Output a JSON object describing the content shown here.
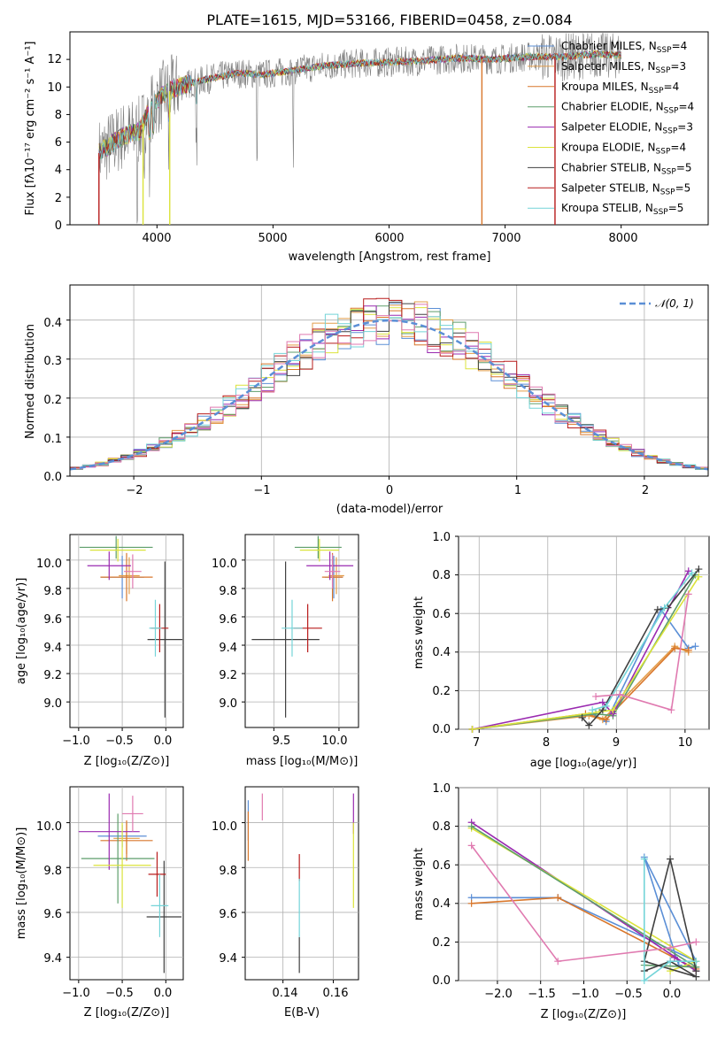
{
  "title": "PLATE=1615, MJD=53166, FIBERID=0458, z=0.084",
  "colors": {
    "chabrier_miles": "#5b8fd6",
    "salpeter_miles": "#e39d4a",
    "kroupa_miles": "#d9772b",
    "chabrier_elodie": "#5e9e6b",
    "salpeter_elodie": "#9a2ab0",
    "kroupa_elodie": "#dbe33b",
    "chabrier_stelib": "#404040",
    "salpeter_stelib": "#b81c1c",
    "kroupa_stelib": "#74d4d8",
    "data": "#808080",
    "pink": "#e07ab0",
    "normal": "#5b8fd6"
  },
  "panels": {
    "spectrum": {
      "xlabel": "wavelength [Angstrom, rest frame]",
      "ylabel": "Flux [fλ10⁻¹⁷ erg cm⁻² s⁻¹ A⁻¹]",
      "xticks": [
        "4000",
        "5000",
        "6000",
        "7000",
        "8000"
      ],
      "yticks": [
        "0",
        "2",
        "4",
        "6",
        "8",
        "10",
        "12"
      ],
      "legend": [
        {
          "label": "Chabrier MILES, N",
          "sub": "SSP",
          "tail": "=4",
          "color": "chabrier_miles"
        },
        {
          "label": "Salpeter MILES, N",
          "sub": "SSP",
          "tail": "=3",
          "color": "salpeter_miles"
        },
        {
          "label": "Kroupa MILES, N",
          "sub": "SSP",
          "tail": "=4",
          "color": "kroupa_miles"
        },
        {
          "label": "Chabrier ELODIE, N",
          "sub": "SSP",
          "tail": "=4",
          "color": "chabrier_elodie"
        },
        {
          "label": "Salpeter ELODIE, N",
          "sub": "SSP",
          "tail": "=3",
          "color": "salpeter_elodie"
        },
        {
          "label": "Kroupa ELODIE, N",
          "sub": "SSP",
          "tail": "=4",
          "color": "kroupa_elodie"
        },
        {
          "label": "Chabrier STELIB, N",
          "sub": "SSP",
          "tail": "=5",
          "color": "chabrier_stelib"
        },
        {
          "label": "Salpeter STELIB, N",
          "sub": "SSP",
          "tail": "=5",
          "color": "salpeter_stelib"
        },
        {
          "label": "Kroupa STELIB, N",
          "sub": "SSP",
          "tail": "=5",
          "color": "kroupa_stelib"
        }
      ]
    },
    "hist": {
      "xlabel": "(data-model)/error",
      "ylabel": "Normed distribution",
      "xticks": [
        "−2",
        "−1",
        "0",
        "1",
        "2"
      ],
      "yticks": [
        "0.0",
        "0.1",
        "0.2",
        "0.3",
        "0.4"
      ],
      "legend": "𝒩(0, 1)"
    },
    "age_z": {
      "xlabel": "Z [log₁₀(Z/Z⊙)]",
      "ylabel": "age  [log₁₀(age/yr)]",
      "xticks": [
        "−1.0",
        "−0.5",
        "0.0"
      ],
      "yticks": [
        "9.0",
        "9.2",
        "9.4",
        "9.6",
        "9.8",
        "10.0"
      ]
    },
    "age_mass": {
      "xlabel": "mass [log₁₀(M/M⊙)]",
      "xticks": [
        "9.5",
        "10.0"
      ],
      "yticks": [
        "9.0",
        "9.2",
        "9.4",
        "9.6",
        "9.8",
        "10.0"
      ]
    },
    "mw_age": {
      "xlabel": "age  [log₁₀(age/yr)]",
      "ylabel": "mass weight",
      "xticks": [
        "7",
        "8",
        "9",
        "10"
      ],
      "yticks": [
        "0.0",
        "0.2",
        "0.4",
        "0.6",
        "0.8",
        "1.0"
      ]
    },
    "mass_z": {
      "xlabel": "Z [log₁₀(Z/Z⊙)]",
      "ylabel": "mass [log₁₀(M/M⊙)]",
      "xticks": [
        "−1.0",
        "−0.5",
        "0.0"
      ],
      "yticks": [
        "9.4",
        "9.6",
        "9.8",
        "10.0"
      ]
    },
    "mass_ebv": {
      "xlabel": "E(B-V)",
      "xticks": [
        "0.14",
        "0.16"
      ],
      "yticks": [
        "9.4",
        "9.6",
        "9.8",
        "10.0"
      ]
    },
    "mw_z": {
      "xlabel": "Z [log₁₀(Z/Z⊙)]",
      "ylabel": "mass weight",
      "xticks": [
        "−2.0",
        "−1.5",
        "−1.0",
        "−0.5",
        "0.0"
      ],
      "yticks": [
        "0.0",
        "0.2",
        "0.4",
        "0.6",
        "0.8",
        "1.0"
      ]
    }
  },
  "chart_data": [
    {
      "type": "line",
      "id": "spectrum",
      "xlim": [
        3250,
        8750
      ],
      "ylim": [
        0,
        14
      ],
      "xlabel": "wavelength [Angstrom, rest frame]",
      "envelope": [
        [
          3500,
          5.2
        ],
        [
          3700,
          6.4
        ],
        [
          3850,
          6.8
        ],
        [
          3950,
          8.6
        ],
        [
          4050,
          9.4
        ],
        [
          4150,
          9.9
        ],
        [
          4300,
          10.3
        ],
        [
          4500,
          10.7
        ],
        [
          4700,
          11.0
        ],
        [
          4900,
          10.9
        ],
        [
          5100,
          11.1
        ],
        [
          5400,
          11.5
        ],
        [
          5700,
          11.7
        ],
        [
          6000,
          11.8
        ],
        [
          6300,
          11.9
        ],
        [
          6600,
          12.1
        ],
        [
          6900,
          12.0
        ],
        [
          7200,
          12.2
        ],
        [
          7500,
          12.2
        ],
        [
          7800,
          12.4
        ],
        [
          8000,
          12.3
        ]
      ]
    },
    {
      "type": "bar",
      "id": "hist",
      "xlim": [
        -2.5,
        2.5
      ],
      "ylim": [
        0,
        0.49
      ],
      "normal": {
        "mean": 0,
        "sigma": 1,
        "label": "𝒩(0, 1)"
      }
    },
    {
      "type": "scatter",
      "id": "age_z",
      "xlim": [
        -1.1,
        0.2
      ],
      "ylim": [
        8.82,
        10.18
      ],
      "points": [
        {
          "series": "chabrier_miles",
          "x": -0.5,
          "y": 9.88,
          "xerr": 0.25,
          "yerr": 0.15
        },
        {
          "series": "salpeter_miles",
          "x": -0.42,
          "y": 9.89,
          "xerr": 0.12,
          "yerr": 0.13
        },
        {
          "series": "kroupa_miles",
          "x": -0.45,
          "y": 9.88,
          "xerr": 0.3,
          "yerr": 0.17
        },
        {
          "series": "chabrier_elodie",
          "x": -0.57,
          "y": 10.09,
          "xerr": 0.42,
          "yerr": 0.08
        },
        {
          "series": "salpeter_elodie",
          "x": -0.65,
          "y": 9.96,
          "xerr": 0.25,
          "yerr": 0.1
        },
        {
          "series": "kroupa_elodie",
          "x": -0.55,
          "y": 10.07,
          "xerr": 0.32,
          "yerr": 0.08
        },
        {
          "series": "chabrier_stelib",
          "x": -0.01,
          "y": 9.44,
          "xerr": 0.2,
          "yerr": 0.55
        },
        {
          "series": "salpeter_stelib",
          "x": -0.07,
          "y": 9.52,
          "xerr": 0.1,
          "yerr": 0.17
        },
        {
          "series": "kroupa_stelib",
          "x": -0.12,
          "y": 9.52,
          "xerr": 0.07,
          "yerr": 0.2
        },
        {
          "series": "pink",
          "x": -0.38,
          "y": 9.92,
          "xerr": 0.1,
          "yerr": 0.12
        }
      ]
    },
    {
      "type": "scatter",
      "id": "age_mass",
      "xlim": [
        9.28,
        10.15
      ],
      "ylim": [
        8.82,
        10.18
      ],
      "points": [
        {
          "series": "chabrier_miles",
          "x": 9.96,
          "y": 9.88,
          "xerr": 0.07,
          "yerr": 0.15
        },
        {
          "series": "salpeter_miles",
          "x": 9.98,
          "y": 9.89,
          "xerr": 0.06,
          "yerr": 0.13
        },
        {
          "series": "kroupa_miles",
          "x": 9.95,
          "y": 9.88,
          "xerr": 0.08,
          "yerr": 0.17
        },
        {
          "series": "chabrier_elodie",
          "x": 9.84,
          "y": 10.09,
          "xerr": 0.18,
          "yerr": 0.08
        },
        {
          "series": "salpeter_elodie",
          "x": 9.93,
          "y": 9.96,
          "xerr": 0.18,
          "yerr": 0.1
        },
        {
          "series": "kroupa_elodie",
          "x": 9.85,
          "y": 10.07,
          "xerr": 0.15,
          "yerr": 0.08
        },
        {
          "series": "chabrier_stelib",
          "x": 9.59,
          "y": 9.44,
          "xerr": 0.26,
          "yerr": 0.55
        },
        {
          "series": "salpeter_stelib",
          "x": 9.76,
          "y": 9.52,
          "xerr": 0.11,
          "yerr": 0.17
        },
        {
          "series": "kroupa_stelib",
          "x": 9.64,
          "y": 9.52,
          "xerr": 0.08,
          "yerr": 0.2
        },
        {
          "series": "pink",
          "x": 9.95,
          "y": 9.92,
          "xerr": 0.06,
          "yerr": 0.12
        }
      ]
    },
    {
      "type": "line",
      "id": "mw_age",
      "xlim": [
        6.7,
        10.35
      ],
      "ylim": [
        0,
        1.0
      ],
      "series": [
        {
          "name": "chabrier_miles",
          "x": [
            6.9,
            8.65,
            8.85,
            9.65,
            10.05,
            10.15
          ],
          "y": [
            0.0,
            0.08,
            0.04,
            0.62,
            0.42,
            0.43
          ]
        },
        {
          "name": "salpeter_miles",
          "x": [
            6.9,
            8.6,
            8.8,
            9.85,
            10.05
          ],
          "y": [
            0.0,
            0.07,
            0.05,
            0.43,
            0.4
          ]
        },
        {
          "name": "kroupa_miles",
          "x": [
            6.9,
            8.55,
            8.85,
            9.85,
            10.05
          ],
          "y": [
            0.0,
            0.08,
            0.05,
            0.42,
            0.41
          ]
        },
        {
          "name": "chabrier_elodie",
          "x": [
            6.9,
            8.7,
            8.95,
            10.15
          ],
          "y": [
            0.0,
            0.08,
            0.07,
            0.8
          ]
        },
        {
          "name": "salpeter_elodie",
          "x": [
            6.9,
            8.8,
            8.95,
            10.05
          ],
          "y": [
            0.0,
            0.14,
            0.08,
            0.82
          ]
        },
        {
          "name": "kroupa_elodie",
          "x": [
            6.9,
            8.75,
            8.95,
            10.2
          ],
          "y": [
            0.0,
            0.09,
            0.1,
            0.79
          ]
        },
        {
          "name": "chabrier_stelib",
          "x": [
            8.5,
            8.6,
            8.8,
            9.6,
            9.75,
            10.2
          ],
          "y": [
            0.06,
            0.02,
            0.1,
            0.62,
            0.63,
            0.83
          ]
        },
        {
          "name": "kroupa_stelib",
          "x": [
            8.65,
            8.85,
            9.7,
            10.1
          ],
          "y": [
            0.1,
            0.12,
            0.63,
            0.81
          ]
        },
        {
          "name": "pink",
          "x": [
            8.7,
            9.05,
            9.8,
            10.05
          ],
          "y": [
            0.17,
            0.18,
            0.1,
            0.7
          ]
        }
      ]
    },
    {
      "type": "scatter",
      "id": "mass_z",
      "xlim": [
        -1.1,
        0.2
      ],
      "ylim": [
        9.3,
        10.16
      ],
      "points": [
        {
          "series": "chabrier_miles",
          "x": -0.5,
          "y": 9.94,
          "xerr": 0.28,
          "yerr": 0.05
        },
        {
          "series": "salpeter_miles",
          "x": -0.45,
          "y": 9.93,
          "xerr": 0.15,
          "yerr": 0.07
        },
        {
          "series": "kroupa_miles",
          "x": -0.45,
          "y": 9.92,
          "xerr": 0.3,
          "yerr": 0.09
        },
        {
          "series": "chabrier_elodie",
          "x": -0.55,
          "y": 9.84,
          "xerr": 0.42,
          "yerr": 0.2
        },
        {
          "series": "salpeter_elodie",
          "x": -0.65,
          "y": 9.96,
          "xerr": 0.35,
          "yerr": 0.17
        },
        {
          "series": "kroupa_elodie",
          "x": -0.5,
          "y": 9.81,
          "xerr": 0.33,
          "yerr": 0.19
        },
        {
          "series": "chabrier_stelib",
          "x": -0.02,
          "y": 9.58,
          "xerr": 0.2,
          "yerr": 0.25
        },
        {
          "series": "salpeter_stelib",
          "x": -0.1,
          "y": 9.77,
          "xerr": 0.1,
          "yerr": 0.1
        },
        {
          "series": "kroupa_stelib",
          "x": -0.07,
          "y": 9.63,
          "xerr": 0.1,
          "yerr": 0.14
        },
        {
          "series": "pink",
          "x": -0.38,
          "y": 10.04,
          "xerr": 0.12,
          "yerr": 0.08
        }
      ]
    },
    {
      "type": "scatter",
      "id": "mass_ebv",
      "xlim": [
        0.125,
        0.17
      ],
      "ylim": [
        9.3,
        10.16
      ],
      "points": [
        {
          "series": "chabrier_miles",
          "x": 0.1262,
          "y": 10.01,
          "xerr": 0,
          "yerr": 0.09
        },
        {
          "series": "kroupa_miles",
          "x": 0.1262,
          "y": 9.94,
          "xerr": 0,
          "yerr": 0.11
        },
        {
          "series": "pink",
          "x": 0.1318,
          "y": 10.07,
          "xerr": 0,
          "yerr": 0.06
        },
        {
          "series": "chabrier_stelib",
          "x": 0.1465,
          "y": 9.41,
          "xerr": 0,
          "yerr": 0.08
        },
        {
          "series": "salpeter_stelib",
          "x": 0.1465,
          "y": 9.8,
          "xerr": 0,
          "yerr": 0.06
        },
        {
          "series": "kroupa_stelib",
          "x": 0.1465,
          "y": 9.62,
          "xerr": 0,
          "yerr": 0.13
        },
        {
          "series": "salpeter_elodie",
          "x": 0.168,
          "y": 10.04,
          "xerr": 0,
          "yerr": 0.09
        },
        {
          "series": "kroupa_elodie",
          "x": 0.168,
          "y": 9.81,
          "xerr": 0,
          "yerr": 0.19
        }
      ]
    },
    {
      "type": "line",
      "id": "mw_z",
      "xlim": [
        -2.45,
        0.45
      ],
      "ylim": [
        0,
        1.0
      ],
      "series": [
        {
          "name": "chabrier_miles",
          "x": [
            -2.3,
            -1.3,
            0.3,
            -0.3,
            0.1
          ],
          "y": [
            0.43,
            0.43,
            0.1,
            0.64,
            0.08
          ]
        },
        {
          "name": "kroupa_miles",
          "x": [
            -2.3,
            -1.3,
            0.3,
            0.3
          ],
          "y": [
            0.4,
            0.43,
            0.06,
            0.05
          ]
        },
        {
          "name": "salpeter_elodie",
          "x": [
            -2.3,
            0.3,
            0.05
          ],
          "y": [
            0.82,
            0.05,
            0.12
          ]
        },
        {
          "name": "kroupa_elodie",
          "x": [
            -2.3,
            0.3,
            0.0
          ],
          "y": [
            0.79,
            0.1,
            0.05
          ]
        },
        {
          "name": "chabrier_elodie",
          "x": [
            -2.3,
            0.3,
            -0.3
          ],
          "y": [
            0.8,
            0.07,
            0.08
          ]
        },
        {
          "name": "chabrier_stelib",
          "x": [
            -0.3,
            0.0,
            0.3,
            -0.3,
            0.0,
            0.3
          ],
          "y": [
            0.05,
            0.1,
            0.02,
            0.1,
            0.63,
            0.05
          ]
        },
        {
          "name": "kroupa_stelib",
          "x": [
            -0.3,
            -0.3,
            0.0,
            0.3
          ],
          "y": [
            0.63,
            0.0,
            0.1,
            0.1
          ]
        },
        {
          "name": "pink",
          "x": [
            -2.3,
            -1.3,
            0.0,
            0.3
          ],
          "y": [
            0.7,
            0.1,
            0.17,
            0.2
          ]
        }
      ]
    }
  ]
}
